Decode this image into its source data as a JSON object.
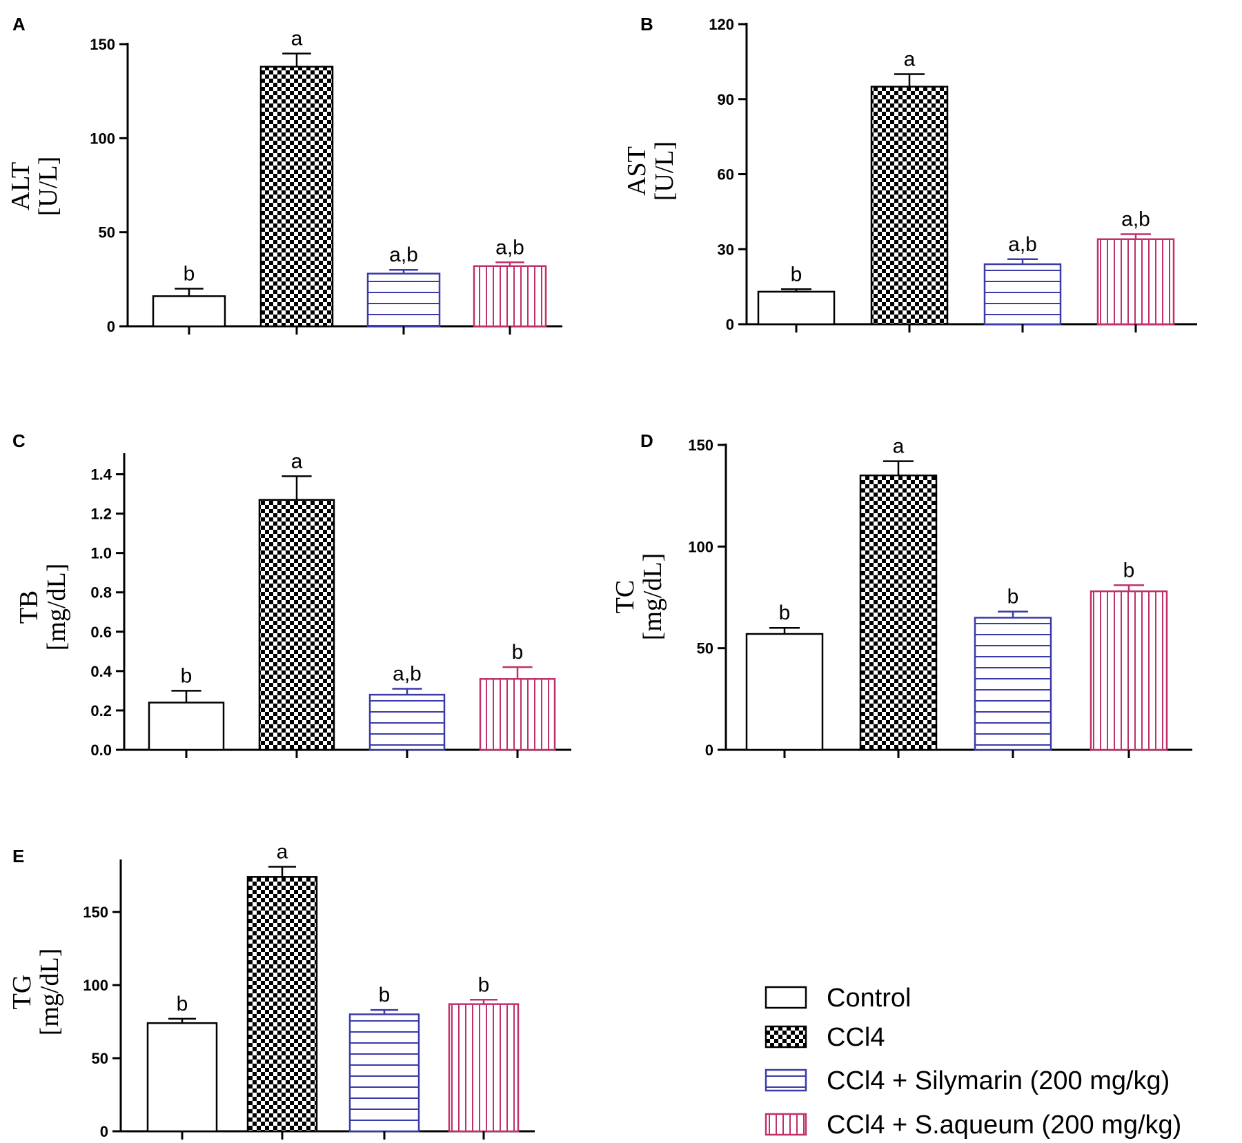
{
  "groups": [
    {
      "name": "Control",
      "pattern": "open",
      "color": "#000000"
    },
    {
      "name": "CCl4",
      "pattern": "checker",
      "color": "#000000"
    },
    {
      "name": "CCl4 + Silymarin (200 mg/kg)",
      "pattern": "hlines",
      "color": "#3a3aa8"
    },
    {
      "name": "CCl4 + S.aqueum (200 mg/kg)",
      "pattern": "vlines",
      "color": "#c0306a"
    }
  ],
  "chart_data": [
    {
      "panel": "A",
      "type": "bar",
      "ylabel_line1": "ALT",
      "ylabel_line2": "[U/L]",
      "ylim": [
        0,
        150
      ],
      "yticks": [
        "0",
        "50",
        "100",
        "150"
      ],
      "values": [
        16,
        138,
        28,
        32
      ],
      "errors": [
        4,
        7,
        2,
        2
      ],
      "labels": [
        "b",
        "a",
        "a,b",
        "a,b"
      ]
    },
    {
      "panel": "B",
      "type": "bar",
      "ylabel_line1": "AST",
      "ylabel_line2": "[U/L]",
      "ylim": [
        0,
        120
      ],
      "yticks": [
        "0",
        "30",
        "60",
        "90",
        "120"
      ],
      "values": [
        13,
        95,
        24,
        34
      ],
      "errors": [
        1,
        5,
        2,
        2
      ],
      "labels": [
        "b",
        "a",
        "a,b",
        "a,b"
      ]
    },
    {
      "panel": "C",
      "type": "bar",
      "ylabel_line1": "TB",
      "ylabel_line2": "[mg/dL]",
      "ylim": [
        0,
        1.5
      ],
      "yticks": [
        "0.0",
        "0.2",
        "0.4",
        "0.6",
        "0.8",
        "1.0",
        "1.2",
        "1.4"
      ],
      "values": [
        0.24,
        1.27,
        0.28,
        0.36
      ],
      "errors": [
        0.06,
        0.12,
        0.03,
        0.06
      ],
      "labels": [
        "b",
        "a",
        "a,b",
        "b"
      ]
    },
    {
      "panel": "D",
      "type": "bar",
      "ylabel_line1": "TC",
      "ylabel_line2": "[mg/dL]",
      "ylim": [
        0,
        150
      ],
      "yticks": [
        "0",
        "50",
        "100",
        "150"
      ],
      "values": [
        57,
        135,
        65,
        78
      ],
      "errors": [
        3,
        7,
        3,
        3
      ],
      "labels": [
        "b",
        "a",
        "b",
        "b"
      ]
    },
    {
      "panel": "E",
      "type": "bar",
      "ylabel_line1": "TG",
      "ylabel_line2": "[mg/dL]",
      "ylim": [
        0,
        185
      ],
      "yticks": [
        "0",
        "50",
        "100",
        "150"
      ],
      "values": [
        74,
        174,
        80,
        87
      ],
      "errors": [
        3,
        7,
        3,
        3
      ],
      "labels": [
        "b",
        "a",
        "b",
        "b"
      ]
    }
  ]
}
